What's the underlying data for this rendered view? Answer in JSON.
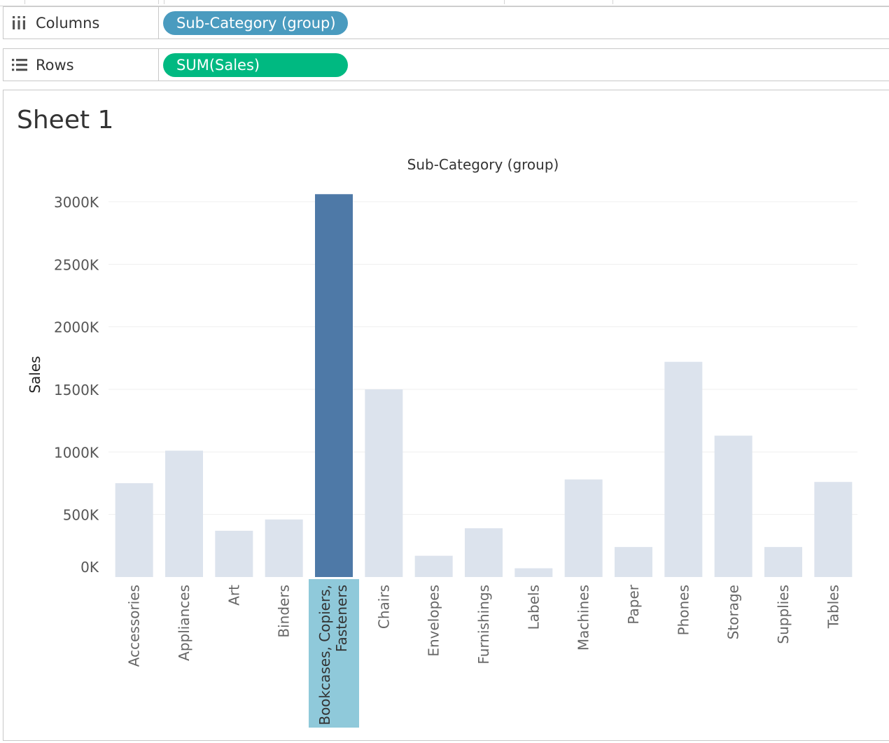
{
  "columns_shelf": {
    "label": "Columns",
    "icon": "columns-icon",
    "pill_label": "Sub-Category (group)",
    "pill_color": "#4a9bbf"
  },
  "rows_shelf": {
    "label": "Rows",
    "icon": "rows-list-icon",
    "pill_label": "SUM(Sales)",
    "pill_color": "#00b981"
  },
  "sheet": {
    "title": "Sheet 1"
  },
  "chart_data": {
    "type": "bar",
    "title": "",
    "header": "Sub-Category (group)",
    "xlabel": "",
    "ylabel": "Sales",
    "ylim": [
      0,
      3000
    ],
    "y_unit_suffix": "K",
    "yticks": [
      0,
      500,
      1000,
      1500,
      2000,
      2500,
      3000
    ],
    "ytick_labels": [
      "0K",
      "500K",
      "1000K",
      "1500K",
      "2000K",
      "2500K",
      "3000K"
    ],
    "categories": [
      "Accessories",
      "Appliances",
      "Art",
      "Binders",
      "Bookcases, Copiers, Fasteners",
      "Chairs",
      "Envelopes",
      "Furnishings",
      "Labels",
      "Machines",
      "Paper",
      "Phones",
      "Storage",
      "Supplies",
      "Tables"
    ],
    "values": [
      750,
      1010,
      370,
      460,
      3060,
      1500,
      170,
      390,
      70,
      780,
      240,
      1720,
      1130,
      240,
      760
    ],
    "highlighted_category": "Bookcases, Copiers, Fasteners",
    "colors": {
      "highlight_bar": "#4e79a7",
      "dimmed_bar": "#dce3ed",
      "highlight_label_bg": "#8fc9da",
      "grid": "#efefef"
    },
    "grid": true
  }
}
